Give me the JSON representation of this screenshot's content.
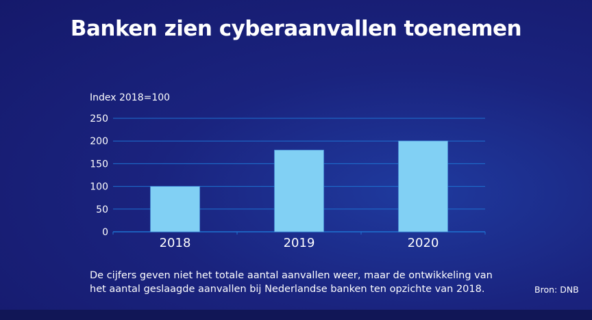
{
  "title": "Banken zien cyberaanvallen toenemen",
  "note_line1": "De cijfers geven niet het totale aantal aanvallen weer, maar de ontwikkeling van",
  "note_line2": "het aantal geslaagde aanvallen bij Nederlandse banken ten opzichte van 2018.",
  "source": "Bron: DNB",
  "colors": {
    "bar": "#81d0f4",
    "grid": "#1e73d2",
    "background": "#1a237e"
  },
  "chart_data": {
    "type": "bar",
    "ylabel": "Index 2018=100",
    "categories": [
      "2018",
      "2019",
      "2020"
    ],
    "values": [
      100,
      180,
      200
    ],
    "ylim": [
      0,
      250
    ],
    "yticks": [
      "0",
      "50",
      "100",
      "150",
      "200",
      "250"
    ],
    "grid": true
  }
}
